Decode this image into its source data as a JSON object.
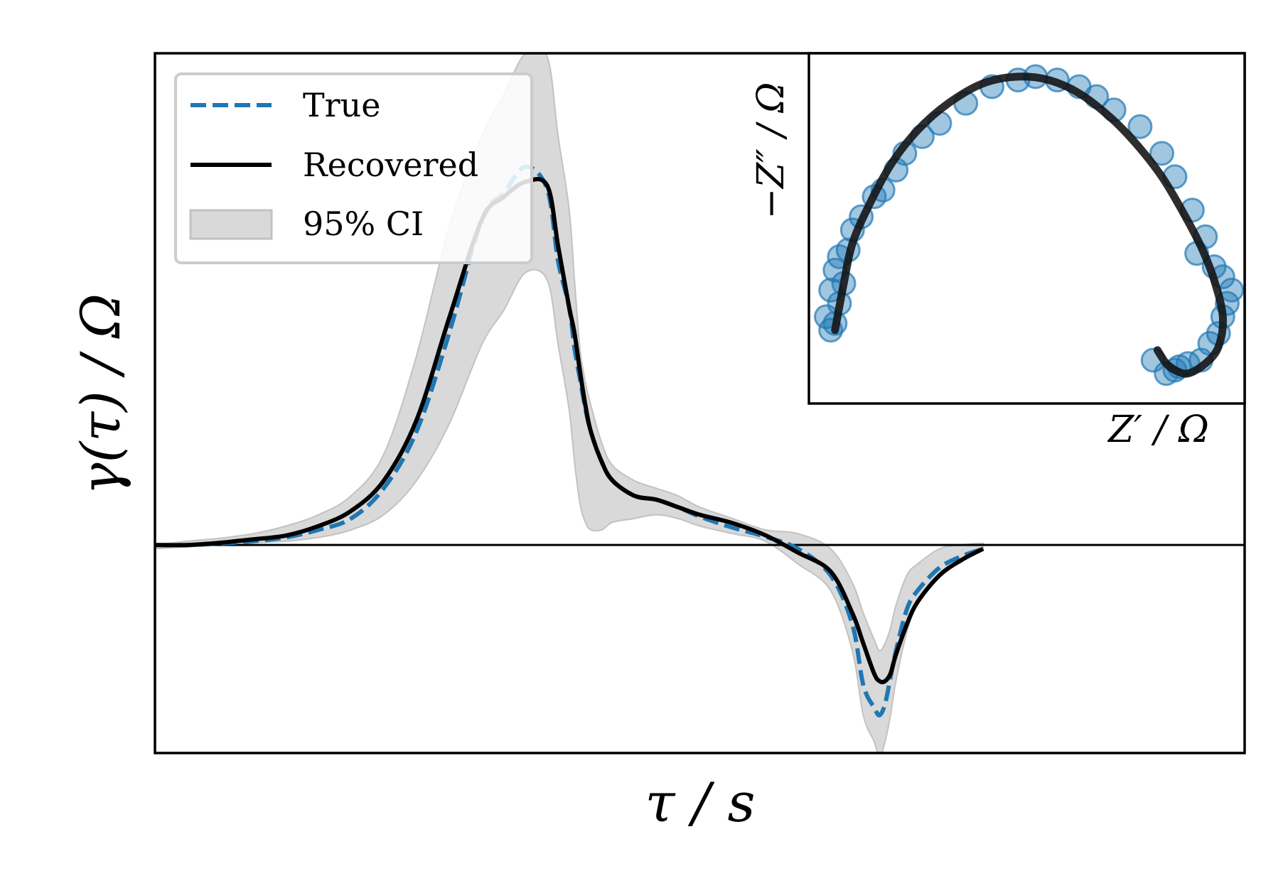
{
  "chart_data": [
    {
      "type": "line",
      "title": "",
      "xlabel": "τ / s",
      "ylabel": "γ(τ) / Ω",
      "xscale": "log",
      "ticks": "none",
      "grid": false,
      "legend": {
        "placement": "top-left",
        "entries": [
          {
            "label": "True",
            "style": "dashed",
            "color": "#1f77b4"
          },
          {
            "label": "Recovered",
            "style": "solid",
            "color": "#000000"
          },
          {
            "label": "95% CI",
            "style": "band",
            "color": "#d9d9d9"
          }
        ]
      },
      "x": [
        0.0,
        0.03,
        0.06,
        0.09,
        0.12,
        0.15,
        0.18,
        0.21,
        0.24,
        0.27,
        0.3,
        0.32,
        0.34,
        0.36,
        0.37,
        0.38,
        0.385,
        0.39,
        0.395,
        0.4,
        0.41,
        0.42,
        0.44,
        0.46,
        0.48,
        0.5,
        0.53,
        0.56,
        0.59,
        0.62,
        0.64,
        0.65,
        0.66,
        0.665,
        0.67,
        0.675,
        0.68,
        0.69,
        0.7,
        0.72,
        0.74,
        0.76
      ],
      "series": [
        {
          "name": "True",
          "color": "#1f77b4",
          "style": "dashed",
          "values": [
            0.0,
            0.0,
            0.004,
            0.01,
            0.02,
            0.04,
            0.07,
            0.15,
            0.3,
            0.56,
            0.86,
            0.93,
            1.0,
            0.94,
            0.75,
            0.63,
            0.52,
            0.44,
            0.36,
            0.3,
            0.22,
            0.17,
            0.13,
            0.12,
            0.1,
            0.075,
            0.046,
            0.022,
            -0.01,
            -0.08,
            -0.21,
            -0.37,
            -0.43,
            -0.45,
            -0.42,
            -0.35,
            -0.28,
            -0.17,
            -0.12,
            -0.06,
            -0.03,
            -0.01
          ]
        },
        {
          "name": "Recovered",
          "color": "#000000",
          "style": "solid",
          "values": [
            0.0,
            0.0,
            0.006,
            0.015,
            0.025,
            0.05,
            0.09,
            0.17,
            0.33,
            0.6,
            0.86,
            0.92,
            0.96,
            0.95,
            0.79,
            0.63,
            0.56,
            0.46,
            0.37,
            0.3,
            0.22,
            0.17,
            0.13,
            0.12,
            0.1,
            0.08,
            0.058,
            0.026,
            -0.02,
            -0.07,
            -0.18,
            -0.26,
            -0.34,
            -0.36,
            -0.36,
            -0.34,
            -0.29,
            -0.21,
            -0.15,
            -0.08,
            -0.04,
            -0.01
          ]
        },
        {
          "name": "95% CI upper",
          "color": "#d9d9d9",
          "style": "band",
          "values": [
            0.0,
            0.01,
            0.018,
            0.03,
            0.05,
            0.08,
            0.13,
            0.24,
            0.5,
            0.84,
            1.08,
            1.19,
            1.3,
            1.29,
            1.08,
            0.89,
            0.7,
            0.52,
            0.43,
            0.37,
            0.27,
            0.21,
            0.17,
            0.15,
            0.13,
            0.1,
            0.07,
            0.04,
            0.03,
            -0.01,
            -0.1,
            -0.18,
            -0.25,
            -0.28,
            -0.26,
            -0.22,
            -0.16,
            -0.08,
            -0.05,
            -0.01,
            0.0,
            0.005
          ]
        },
        {
          "name": "95% CI lower",
          "color": "#d9d9d9",
          "style": "band",
          "values": [
            -0.01,
            -0.005,
            0.0,
            0.006,
            0.01,
            0.02,
            0.04,
            0.08,
            0.17,
            0.32,
            0.53,
            0.62,
            0.72,
            0.7,
            0.53,
            0.36,
            0.22,
            0.11,
            0.06,
            0.04,
            0.04,
            0.06,
            0.07,
            0.08,
            0.07,
            0.05,
            0.03,
            0.01,
            -0.05,
            -0.12,
            -0.28,
            -0.45,
            -0.52,
            -0.56,
            -0.52,
            -0.45,
            -0.36,
            -0.23,
            -0.15,
            -0.08,
            -0.04,
            -0.015
          ]
        }
      ],
      "ylim": [
        -0.55,
        1.3
      ],
      "xlim": [
        0.0,
        1.0
      ]
    },
    {
      "type": "scatter",
      "title": "",
      "xlabel": "Z′ / Ω",
      "ylabel": "−Z″ / Ω",
      "ticks": "none",
      "grid": false,
      "series": [
        {
          "name": "data",
          "color": "#1f77b4",
          "style": "markers",
          "x": [
            0.05,
            0.06,
            0.04,
            0.07,
            0.05,
            0.08,
            0.06,
            0.07,
            0.09,
            0.1,
            0.12,
            0.15,
            0.17,
            0.2,
            0.22,
            0.26,
            0.3,
            0.36,
            0.42,
            0.48,
            0.52,
            0.57,
            0.62,
            0.66,
            0.7,
            0.76,
            0.81,
            0.84,
            0.88,
            0.91,
            0.89,
            0.93,
            0.95,
            0.97,
            0.96,
            0.95,
            0.94,
            0.92,
            0.9,
            0.87,
            0.85,
            0.84,
            0.82,
            0.79
          ],
          "y": [
            0.22,
            0.24,
            0.26,
            0.3,
            0.34,
            0.36,
            0.4,
            0.44,
            0.46,
            0.52,
            0.56,
            0.62,
            0.64,
            0.7,
            0.75,
            0.8,
            0.84,
            0.9,
            0.95,
            0.97,
            0.98,
            0.97,
            0.95,
            0.92,
            0.88,
            0.83,
            0.75,
            0.68,
            0.58,
            0.5,
            0.45,
            0.41,
            0.38,
            0.34,
            0.3,
            0.26,
            0.21,
            0.18,
            0.13,
            0.12,
            0.11,
            0.1,
            0.09,
            0.13
          ]
        },
        {
          "name": "fit",
          "color": "#111111",
          "style": "solid",
          "x": [
            0.06,
            0.08,
            0.1,
            0.14,
            0.19,
            0.25,
            0.32,
            0.4,
            0.48,
            0.55,
            0.62,
            0.69,
            0.75,
            0.81,
            0.86,
            0.9,
            0.93,
            0.95,
            0.94,
            0.91,
            0.87,
            0.84,
            0.82,
            0.8
          ],
          "y": [
            0.22,
            0.36,
            0.48,
            0.6,
            0.72,
            0.82,
            0.9,
            0.96,
            0.98,
            0.97,
            0.93,
            0.86,
            0.78,
            0.68,
            0.57,
            0.47,
            0.37,
            0.26,
            0.17,
            0.12,
            0.09,
            0.1,
            0.12,
            0.16
          ]
        }
      ],
      "xlim": [
        0.0,
        1.0
      ],
      "ylim": [
        0.0,
        1.05
      ]
    }
  ]
}
